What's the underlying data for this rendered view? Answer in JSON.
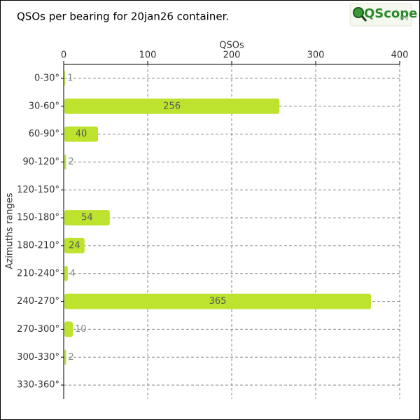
{
  "chart_data": {
    "type": "bar",
    "orientation": "horizontal",
    "title": "QSOs per bearing for 20jan26 container.",
    "x_label": "QSOs",
    "y_label": "Azimuths ranges",
    "categories": [
      "0-30°",
      "30-60°",
      "60-90°",
      "90-120°",
      "120-150°",
      "150-180°",
      "180-210°",
      "210-240°",
      "240-270°",
      "270-300°",
      "300-330°",
      "330-360°"
    ],
    "values": [
      1,
      256,
      40,
      2,
      null,
      54,
      24,
      4,
      365,
      10,
      2,
      null
    ],
    "color": "#bde32f",
    "xlim": [
      0,
      400
    ],
    "xticks": [
      0,
      100,
      200,
      300,
      400
    ],
    "grid": true
  },
  "logo": {
    "text": "QScope",
    "suffix": ".org"
  }
}
